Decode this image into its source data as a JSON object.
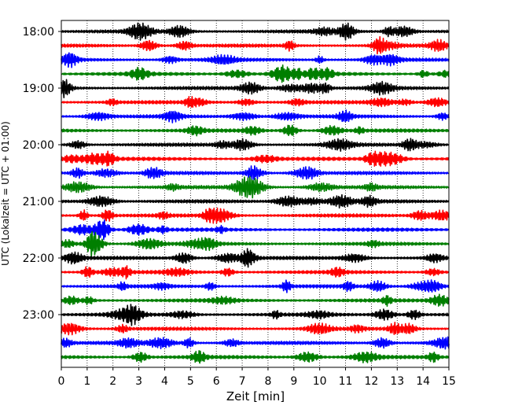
{
  "chart_data": {
    "type": "line",
    "title": "",
    "xlabel": "Zeit  [min]",
    "ylabel": "UTC (Lokalzeit = UTC + 01:00)",
    "xlim": [
      0,
      15
    ],
    "x_ticks": [
      "0",
      "1",
      "2",
      "3",
      "4",
      "5",
      "6",
      "7",
      "8",
      "9",
      "10",
      "11",
      "12",
      "13",
      "14",
      "15"
    ],
    "y_ticks": [
      "18:00",
      "19:00",
      "20:00",
      "21:00",
      "22:00",
      "23:00"
    ],
    "grid": "vertical dotted",
    "line_colors": [
      "#000000",
      "#ff0000",
      "#0000ff",
      "#007f00"
    ],
    "rows_per_hour": 4,
    "row_start_times": [
      "18:00",
      "18:15",
      "18:30",
      "18:45",
      "19:00",
      "19:15",
      "19:30",
      "19:45",
      "20:00",
      "20:15",
      "20:30",
      "20:45",
      "21:00",
      "21:15",
      "21:30",
      "21:45",
      "22:00",
      "22:15",
      "22:30",
      "22:45",
      "23:00",
      "23:15",
      "23:30",
      "23:45"
    ]
  }
}
